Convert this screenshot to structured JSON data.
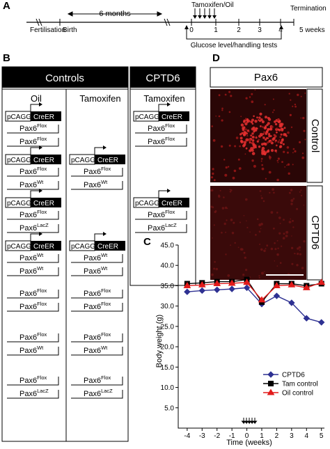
{
  "panel_labels": [
    "A",
    "B",
    "C",
    "D"
  ],
  "panel_a": {
    "fertilisation": "Fertilisation",
    "birth": "Birth",
    "interval": "6 months",
    "treatment": "Tamoxifen/Oil",
    "tests": "Glucose level/handling tests",
    "termination": "Termination",
    "weeks": [
      "0",
      "1",
      "2",
      "3",
      "4"
    ],
    "end": "5 weeks"
  },
  "panel_b": {
    "groups": [
      "Controls",
      "CPTD6"
    ],
    "columns": [
      {
        "title": "Oil",
        "rows": [
          [
            {
              "promoter": "pCAGG",
              "gene": "CreER"
            },
            {
              "gene": "Pax6",
              "allele": "Flox"
            },
            {
              "gene": "Pax6",
              "allele": "Flox"
            }
          ],
          [
            {
              "promoter": "pCAGG",
              "gene": "CreER"
            },
            {
              "gene": "Pax6",
              "allele": "Flox"
            },
            {
              "gene": "Pax6",
              "allele": "Wt"
            }
          ],
          [
            {
              "promoter": "pCAGG",
              "gene": "CreER"
            },
            {
              "gene": "Pax6",
              "allele": "Flox"
            },
            {
              "gene": "Pax6",
              "allele": "LacZ"
            }
          ],
          [
            {
              "promoter": "pCAGG",
              "gene": "CreER"
            },
            {
              "gene": "Pax6",
              "allele": "Wt"
            },
            {
              "gene": "Pax6",
              "allele": "Wt"
            }
          ],
          [
            {
              "gene": "Pax6",
              "allele": "Flox"
            },
            {
              "gene": "Pax6",
              "allele": "Flox"
            }
          ],
          [
            {
              "gene": "Pax6",
              "allele": "Flox"
            },
            {
              "gene": "Pax6",
              "allele": "Wt"
            }
          ],
          [
            {
              "gene": "Pax6",
              "allele": "Flox"
            },
            {
              "gene": "Pax6",
              "allele": "LacZ"
            }
          ]
        ]
      },
      {
        "title": "Tamoxifen",
        "rows": [
          null,
          [
            {
              "promoter": "pCAGG",
              "gene": "CreER"
            },
            {
              "gene": "Pax6",
              "allele": "Flox"
            },
            {
              "gene": "Pax6",
              "allele": "Wt"
            }
          ],
          null,
          [
            {
              "promoter": "pCAGG",
              "gene": "CreER"
            },
            {
              "gene": "Pax6",
              "allele": "Wt"
            },
            {
              "gene": "Pax6",
              "allele": "Wt"
            }
          ],
          [
            {
              "gene": "Pax6",
              "allele": "Flox"
            },
            {
              "gene": "Pax6",
              "allele": "Flox"
            }
          ],
          [
            {
              "gene": "Pax6",
              "allele": "Flox"
            },
            {
              "gene": "Pax6",
              "allele": "Wt"
            }
          ],
          [
            {
              "gene": "Pax6",
              "allele": "Flox"
            },
            {
              "gene": "Pax6",
              "allele": "LacZ"
            }
          ]
        ]
      },
      {
        "title": "Tamoxifen",
        "rows": [
          [
            {
              "promoter": "pCAGG",
              "gene": "CreER"
            },
            {
              "gene": "Pax6",
              "allele": "Flox"
            },
            {
              "gene": "Pax6",
              "allele": "Flox"
            }
          ],
          null,
          [
            {
              "promoter": "pCAGG",
              "gene": "CreER"
            },
            {
              "gene": "Pax6",
              "allele": "Flox"
            },
            {
              "gene": "Pax6",
              "allele": "LacZ"
            }
          ]
        ]
      }
    ]
  },
  "chart_data": {
    "type": "line",
    "x_label": "Time (weeks)",
    "y_label": "Body weight (g)",
    "x": [
      -4,
      -3,
      -2,
      -1,
      0,
      1,
      2,
      3,
      4,
      5
    ],
    "xlim": [
      -4.6,
      5.2
    ],
    "xticks": [
      -4,
      -3,
      -2,
      -1,
      0,
      1,
      2,
      3,
      4,
      5
    ],
    "ylim": [
      0,
      45
    ],
    "yticks": [
      {
        "value": 5,
        "label": "5.0"
      },
      {
        "value": 10,
        "label": "10.0"
      },
      {
        "value": 15,
        "label": "15.0"
      },
      {
        "value": 20,
        "label": "20.0"
      },
      {
        "value": 25,
        "label": "25.0"
      },
      {
        "value": 30,
        "label": "30.0"
      },
      {
        "value": 35,
        "label": "35.0"
      },
      {
        "value": 40,
        "label": "40.0"
      },
      {
        "value": 45,
        "label": "45.0"
      }
    ],
    "legend": "lower right",
    "series": [
      {
        "name": "CPTD6",
        "color": "#2e3192",
        "marker": "diamond",
        "values": [
          33.5,
          33.8,
          34,
          34.2,
          34.5,
          30.5,
          32.5,
          30.8,
          27,
          26
        ]
      },
      {
        "name": "Tam control",
        "color": "#000000",
        "marker": "square",
        "values": [
          35.5,
          35.7,
          36,
          36,
          36.5,
          31,
          35.5,
          35.5,
          35,
          35.5
        ]
      },
      {
        "name": "Oil control",
        "color": "#e21b1b",
        "marker": "triangle",
        "values": [
          35,
          35.2,
          35.5,
          35.6,
          35.8,
          31.5,
          35,
          35.2,
          34.5,
          35.8
        ]
      }
    ]
  },
  "panel_d": {
    "title": "Pax6",
    "rows": [
      "Control",
      "CPTD6"
    ]
  }
}
